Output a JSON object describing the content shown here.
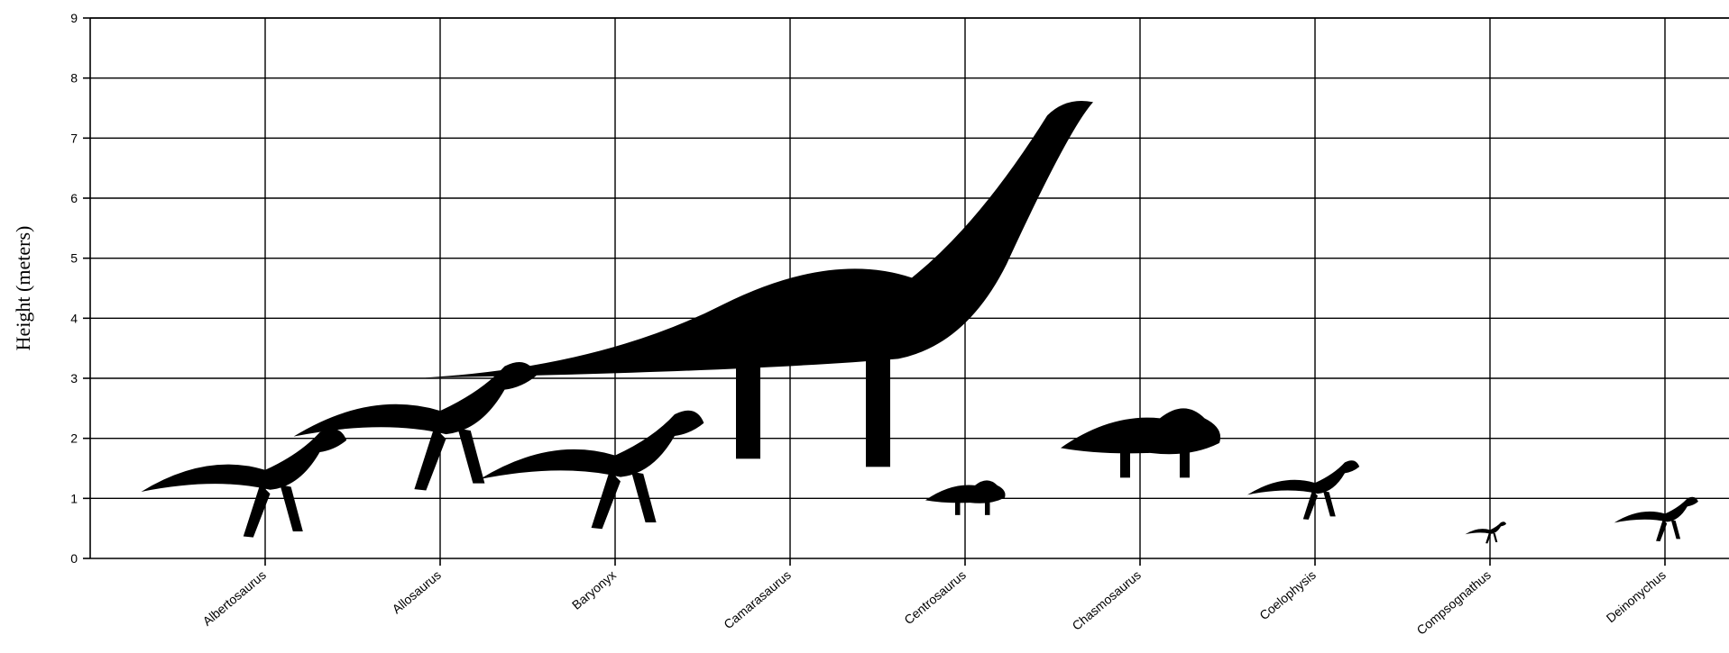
{
  "chart_data": {
    "type": "scatter",
    "ylabel": "Height (meters)",
    "xlabel": "",
    "ylim": [
      0,
      9
    ],
    "yticks": [
      0,
      1,
      2,
      3,
      4,
      5,
      6,
      7,
      8,
      9
    ],
    "grid": true,
    "categories": [
      "Albertosaurus",
      "Allosaurus",
      "Baryonyx",
      "Camarasaurus",
      "Centrosaurus",
      "Chasmosaurus",
      "Coelophysis",
      "Compsognathus",
      "Deinonychus"
    ],
    "series": [
      {
        "values": [
          2.1,
          3.2,
          2.4,
          7.6,
          1.3,
          2.5,
          1.6,
          0.6,
          1.0
        ]
      }
    ]
  }
}
